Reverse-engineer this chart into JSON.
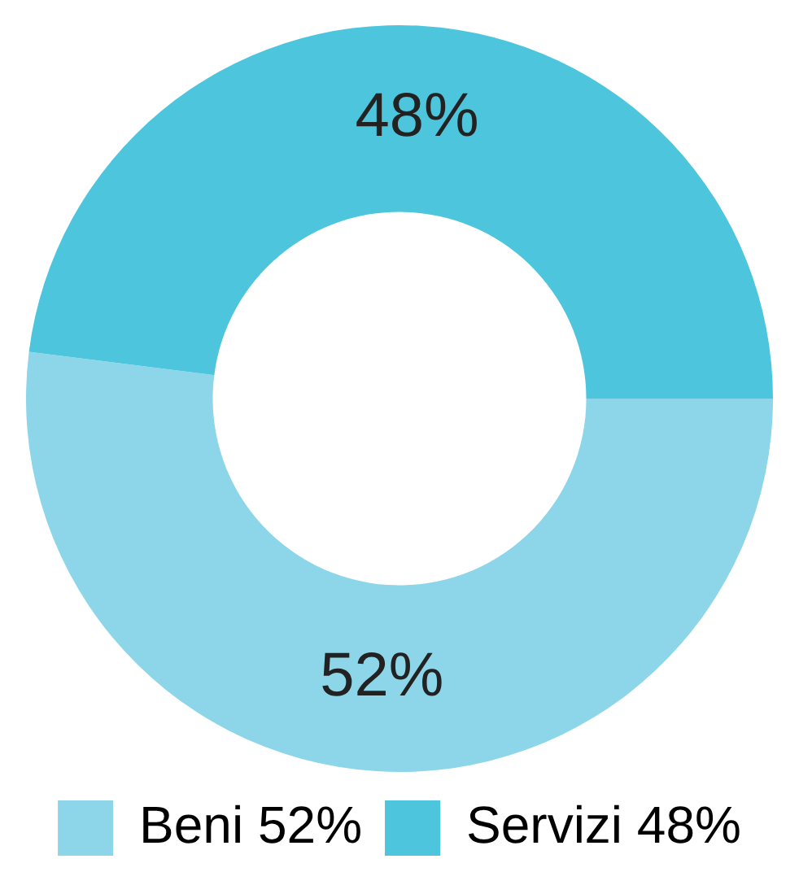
{
  "chart_data": {
    "type": "donut",
    "categories": [
      "Beni",
      "Servizi"
    ],
    "values": [
      52,
      48
    ],
    "colors": [
      "#8dd6ea",
      "#4cc5dd"
    ],
    "value_labels": [
      "52%",
      "48%"
    ],
    "legend": "bottom"
  }
}
